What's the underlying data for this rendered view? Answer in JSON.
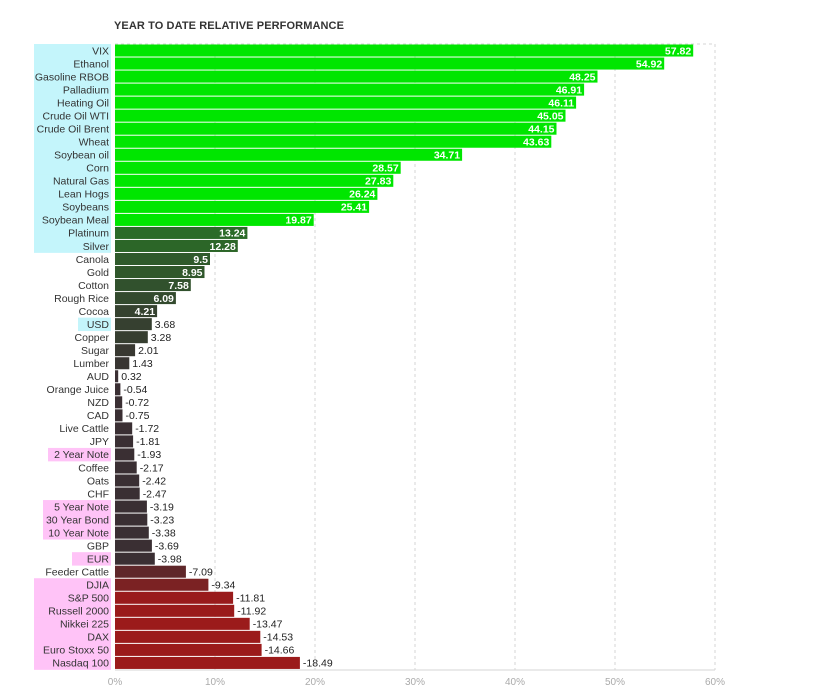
{
  "chart_data": {
    "type": "bar",
    "orientation": "horizontal",
    "title": "YEAR TO DATE RELATIVE PERFORMANCE",
    "xlim": [
      0,
      60
    ],
    "x_ticks": [
      "0%",
      "10%",
      "20%",
      "30%",
      "40%",
      "50%",
      "60%"
    ],
    "grid": true,
    "categories": [
      "VIX",
      "Ethanol",
      "Gasoline RBOB",
      "Palladium",
      "Heating Oil",
      "Crude Oil WTI",
      "Crude Oil Brent",
      "Wheat",
      "Soybean oil",
      "Corn",
      "Natural Gas",
      "Lean Hogs",
      "Soybeans",
      "Soybean Meal",
      "Platinum",
      "Silver",
      "Canola",
      "Gold",
      "Cotton",
      "Rough Rice",
      "Cocoa",
      "USD",
      "Copper",
      "Sugar",
      "Lumber",
      "AUD",
      "Orange Juice",
      "NZD",
      "CAD",
      "Live Cattle",
      "JPY",
      "2 Year Note",
      "Coffee",
      "Oats",
      "CHF",
      "5 Year Note",
      "30 Year Bond",
      "10 Year Note",
      "GBP",
      "EUR",
      "Feeder Cattle",
      "DJIA",
      "S&P 500",
      "Russell 2000",
      "Nikkei 225",
      "DAX",
      "Euro Stoxx 50",
      "Nasdaq 100"
    ],
    "values": [
      57.82,
      54.92,
      48.25,
      46.91,
      46.11,
      45.05,
      44.15,
      43.63,
      34.71,
      28.57,
      27.83,
      26.24,
      25.41,
      19.87,
      13.24,
      12.28,
      9.5,
      8.95,
      7.58,
      6.09,
      4.21,
      3.68,
      3.28,
      2.01,
      1.43,
      0.32,
      -0.54,
      -0.72,
      -0.75,
      -1.72,
      -1.81,
      -1.93,
      -2.17,
      -2.42,
      -2.47,
      -3.19,
      -3.23,
      -3.38,
      -3.69,
      -3.98,
      -7.09,
      -9.34,
      -11.81,
      -11.92,
      -13.47,
      -14.53,
      -14.66,
      -18.49
    ],
    "value_labels": [
      "57.82",
      "54.92",
      "48.25",
      "46.91",
      "46.11",
      "45.05",
      "44.15",
      "43.63",
      "34.71",
      "28.57",
      "27.83",
      "26.24",
      "25.41",
      "19.87",
      "13.24",
      "12.28",
      "9.5",
      "8.95",
      "7.58",
      "6.09",
      "4.21",
      "3.68",
      "3.28",
      "2.01",
      "1.43",
      "0.32",
      "-0.54",
      "-0.72",
      "-0.75",
      "-1.72",
      "-1.81",
      "-1.93",
      "-2.17",
      "-2.42",
      "-2.47",
      "-3.19",
      "-3.23",
      "-3.38",
      "-3.69",
      "-3.98",
      "-7.09",
      "-9.34",
      "-11.81",
      "-11.92",
      "-13.47",
      "-14.53",
      "-14.66",
      "-18.49"
    ],
    "category_highlights": {
      "cyan": [
        "VIX",
        "Ethanol",
        "Gasoline RBOB",
        "Palladium",
        "Heating Oil",
        "Crude Oil WTI",
        "Crude Oil Brent",
        "Wheat",
        "Soybean oil",
        "Corn",
        "Natural Gas",
        "Lean Hogs",
        "Soybeans",
        "Soybean Meal",
        "Platinum",
        "Silver",
        "USD"
      ],
      "pink": [
        "2 Year Note",
        "5 Year Note",
        "30 Year Bond",
        "10 Year Note",
        "EUR",
        "DJIA",
        "S&P 500",
        "Russell 2000",
        "Nikkei 225",
        "DAX",
        "Euro Stoxx 50",
        "Nasdaq 100"
      ]
    },
    "colors": {
      "cyan_highlight": "#c4f5fb",
      "pink_highlight": "#ffc3f7",
      "bright_green": "#00e600",
      "dark_green": "#2a6e27",
      "near_zero": "#3a2f33",
      "dark_red": "#9b1b1b",
      "grid": "#d5d5d5"
    }
  }
}
